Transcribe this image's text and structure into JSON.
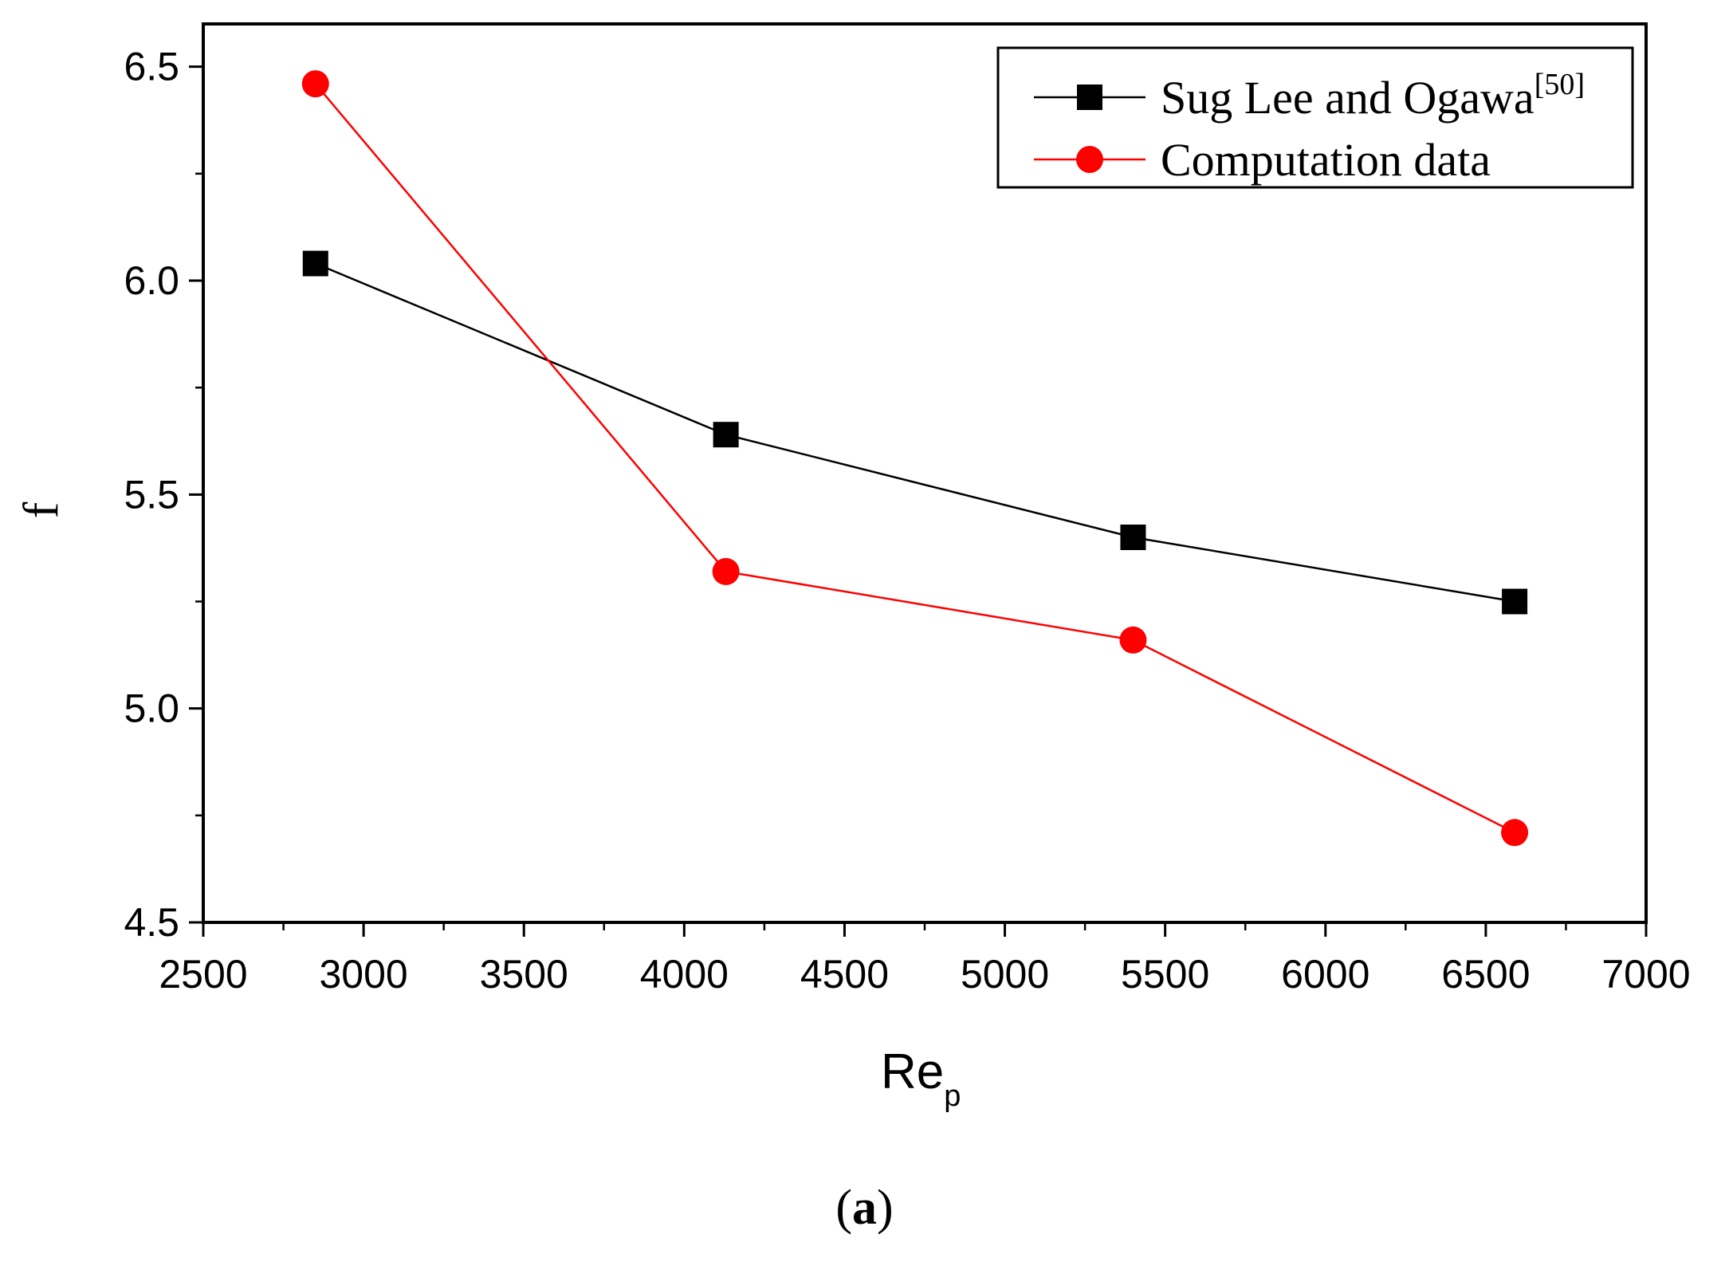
{
  "chart_data": {
    "type": "line",
    "title": "",
    "xlabel": "Re",
    "xlabel_subscript": "p",
    "ylabel": "f",
    "xlim": [
      2500,
      7000
    ],
    "ylim": [
      4.5,
      6.6
    ],
    "x_major_ticks": [
      2500,
      3000,
      3500,
      4000,
      4500,
      5000,
      5500,
      6000,
      6500,
      7000
    ],
    "x_tick_labels": [
      "2500",
      "3000",
      "3500",
      "4000",
      "4500",
      "5000",
      "5500",
      "6000",
      "6500",
      "7000"
    ],
    "y_major_ticks": [
      4.5,
      5.0,
      5.5,
      6.0,
      6.5
    ],
    "y_tick_labels": [
      "4.5",
      "5.0",
      "5.5",
      "6.0",
      "6.5"
    ],
    "legend_position": "top-right",
    "series": [
      {
        "name": "Sug Lee and Ogawa",
        "name_superscript": "[50]",
        "color": "#000000",
        "marker": "square",
        "x": [
          2850,
          4130,
          5400,
          6590
        ],
        "values": [
          6.04,
          5.64,
          5.4,
          5.25
        ]
      },
      {
        "name": "Computation data",
        "color": "#ff0000",
        "marker": "circle",
        "x": [
          2850,
          4130,
          5400,
          6590
        ],
        "values": [
          6.46,
          5.32,
          5.16,
          4.71
        ]
      }
    ]
  },
  "caption": {
    "open": "(",
    "label": "a",
    "close": ")"
  }
}
